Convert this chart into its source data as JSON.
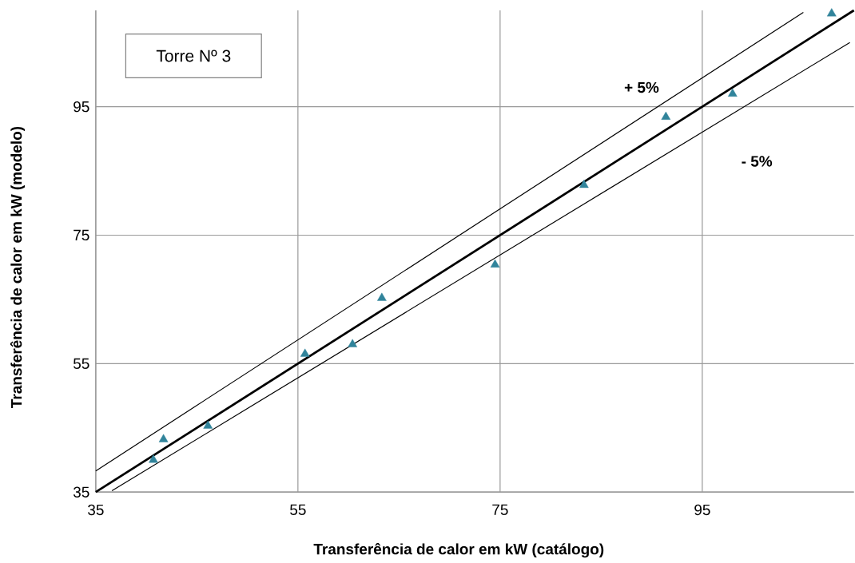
{
  "chart_data": {
    "type": "scatter",
    "title": "Torre Nº 3",
    "xlabel": "Transferência de calor em kW (catálogo)",
    "ylabel": "Transferência de calor em kW (modelo)",
    "xlim": [
      35,
      110
    ],
    "ylim": [
      35,
      110
    ],
    "xticks": [
      35,
      55,
      75,
      95
    ],
    "yticks": [
      35,
      55,
      75,
      95
    ],
    "grid": true,
    "series": [
      {
        "color": "#31849b",
        "marker": "triangle",
        "x": [
          40.7,
          41.7,
          46.1,
          55.7,
          60.4,
          63.3,
          74.5,
          83.3,
          91.4,
          98.0,
          107.8
        ],
        "values": [
          40.0,
          43.2,
          45.3,
          56.5,
          58.0,
          65.2,
          70.4,
          82.8,
          93.4,
          97.0,
          109.5
        ]
      },
      {
        "type": "line",
        "color": "#000000",
        "x": [
          35,
          110
        ],
        "values": [
          35,
          110
        ]
      },
      {
        "type": "line",
        "color": "#000000",
        "x": [
          35,
          105
        ],
        "values": [
          38.3,
          109.7
        ]
      },
      {
        "type": "line",
        "color": "#000000",
        "x": [
          36.6,
          109.6
        ],
        "values": [
          35.2,
          105.0
        ]
      }
    ],
    "annotations": [
      "+ 5%",
      "- 5%"
    ]
  }
}
